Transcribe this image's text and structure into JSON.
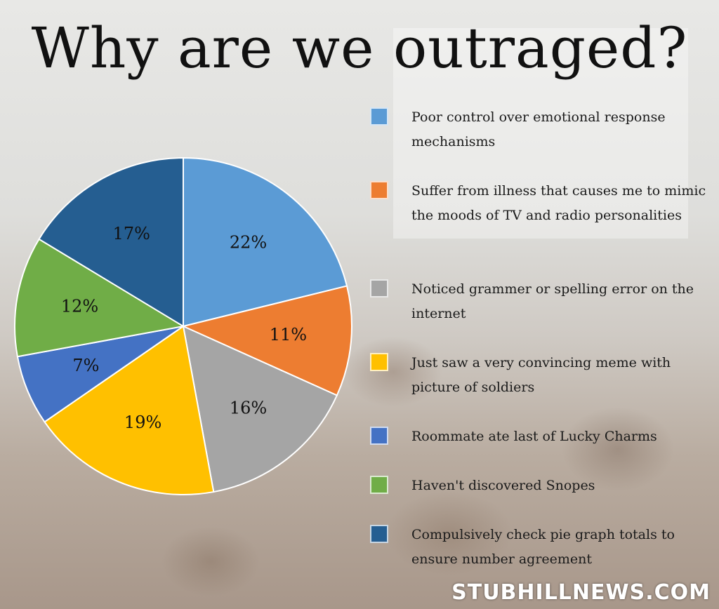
{
  "header": {
    "title": "Why are we outraged?"
  },
  "chart_data": {
    "type": "pie",
    "title": "Why are we outraged?",
    "legend_position": "right",
    "slices": [
      {
        "label": "Poor control over emotional response mechanisms",
        "value": 22,
        "value_label": "22%",
        "color": "#5b9bd5"
      },
      {
        "label": "Suffer from illness that causes me to mimic the moods of TV and radio personalities",
        "value": 11,
        "value_label": "11%",
        "color": "#ed7d31"
      },
      {
        "label": "Noticed grammer or spelling error on the internet",
        "value": 16,
        "value_label": "16%",
        "color": "#a5a5a5"
      },
      {
        "label": "Just saw a very convincing meme with picture of soldiers",
        "value": 19,
        "value_label": "19%",
        "color": "#ffc000"
      },
      {
        "label": "Roommate ate last of Lucky Charms",
        "value": 7,
        "value_label": "7%",
        "color": "#4472c4"
      },
      {
        "label": "Haven't discovered Snopes",
        "value": 12,
        "value_label": "12%",
        "color": "#70ad47"
      },
      {
        "label": "Compulsively check pie graph totals to ensure number agreement",
        "value": 17,
        "value_label": "17%",
        "color": "#255e91"
      }
    ]
  },
  "footer": {
    "watermark": "STUBHILLNEWS.COM"
  }
}
